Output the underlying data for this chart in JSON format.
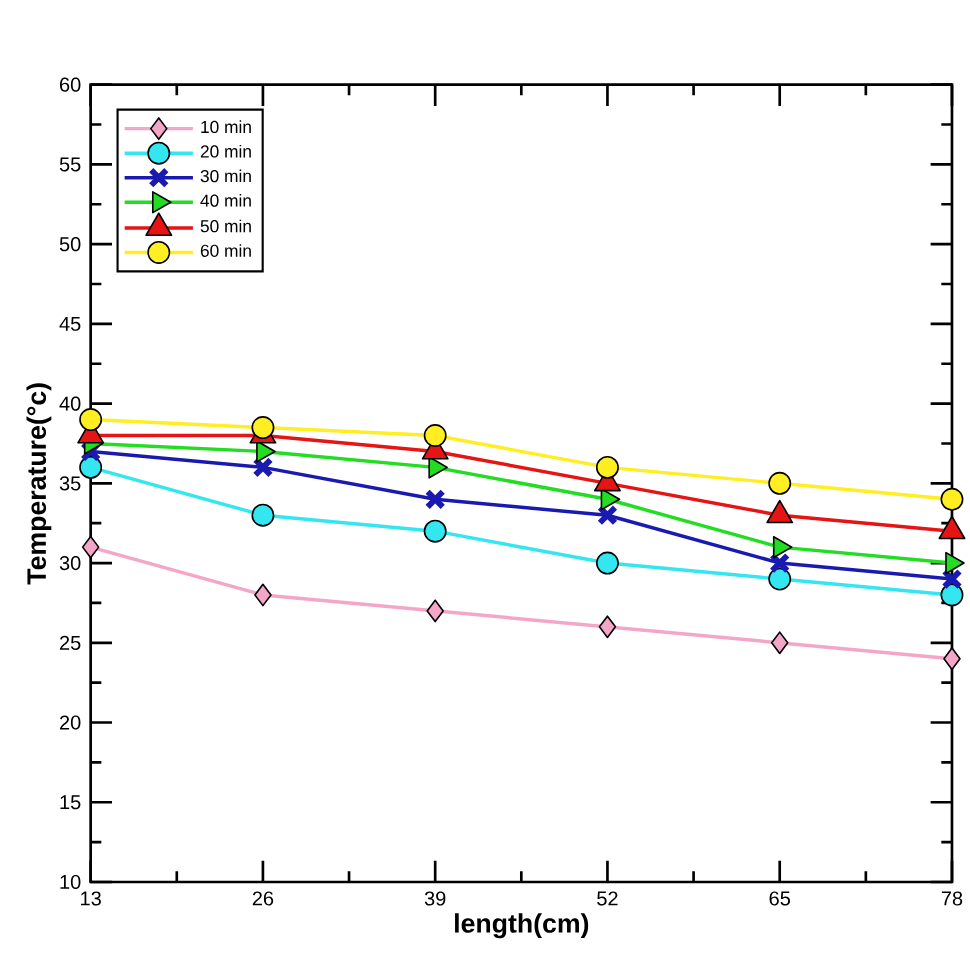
{
  "chart_data": {
    "type": "line",
    "xlabel": "length(cm)",
    "ylabel": "Temperature(°c)",
    "x": [
      13,
      26,
      39,
      52,
      65,
      78
    ],
    "xlim": [
      13,
      78
    ],
    "xticks": [
      13,
      26,
      39,
      52,
      65,
      78
    ],
    "ylim": [
      10,
      60
    ],
    "yticks": [
      10,
      15,
      20,
      25,
      30,
      35,
      40,
      45,
      50,
      55,
      60
    ],
    "legend": "top left",
    "grid": false,
    "series": [
      {
        "name": "10 min",
        "color": "#f4a6c8",
        "marker": "diamond",
        "values": [
          31,
          28,
          27,
          26,
          25,
          24
        ]
      },
      {
        "name": "20 min",
        "color": "#33e6f0",
        "marker": "circle",
        "values": [
          36,
          33,
          32,
          30,
          29,
          28
        ]
      },
      {
        "name": "30 min",
        "color": "#1a1ab0",
        "marker": "cross",
        "values": [
          37,
          36,
          34,
          33,
          30,
          29
        ]
      },
      {
        "name": "40 min",
        "color": "#22dd22",
        "marker": "triangle-right",
        "values": [
          37.5,
          37,
          36,
          34,
          31,
          30
        ]
      },
      {
        "name": "50 min",
        "color": "#e61414",
        "marker": "triangle",
        "values": [
          38,
          38,
          37,
          35,
          33,
          32
        ]
      },
      {
        "name": "60 min",
        "color": "#ffee22",
        "marker": "circle",
        "values": [
          39,
          38.5,
          38,
          36,
          35,
          34
        ]
      }
    ]
  }
}
